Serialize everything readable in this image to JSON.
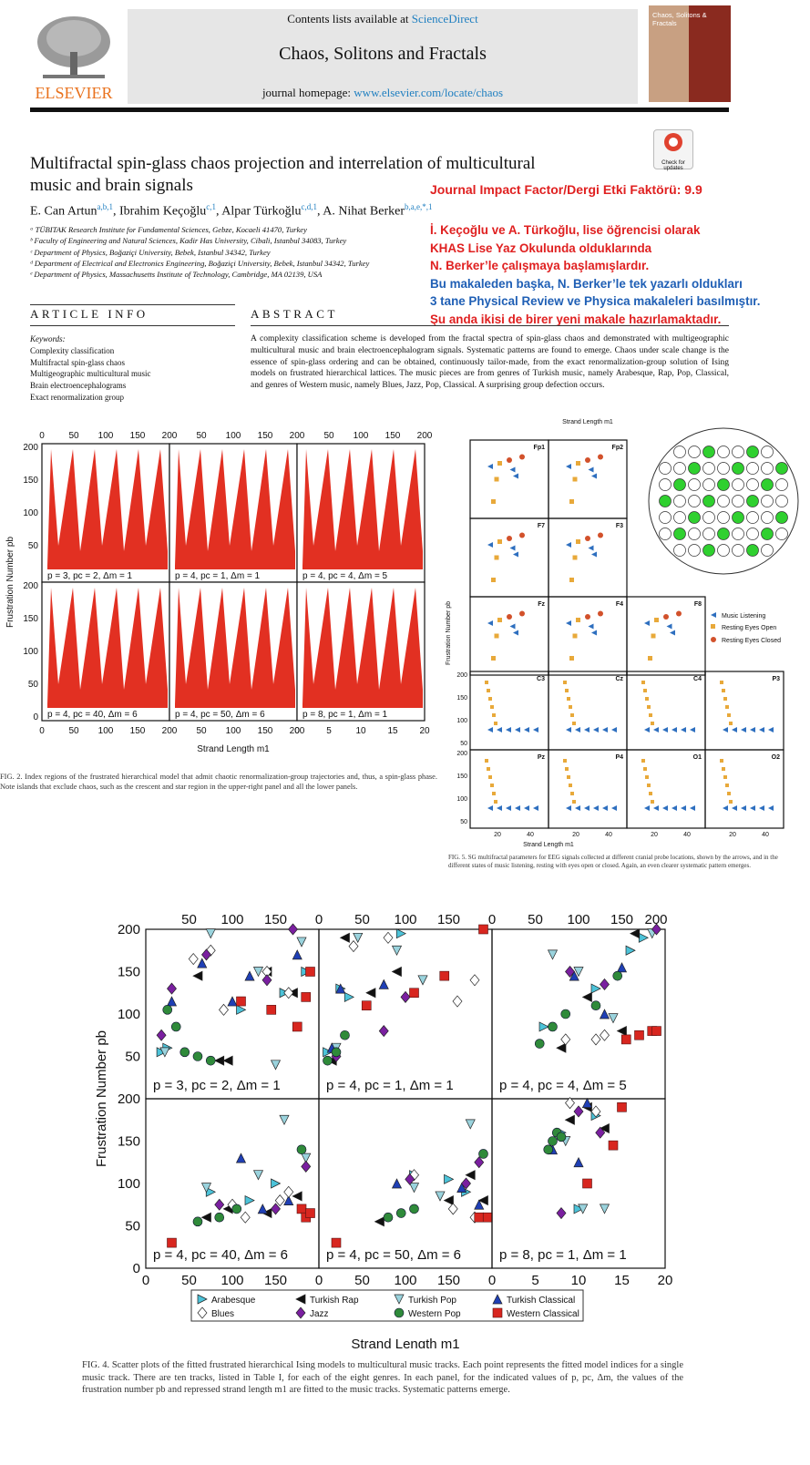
{
  "header": {
    "contents_prefix": "Contents lists available at ",
    "contents_link": "ScienceDirect",
    "journal_name": "Chaos, Solitons and Fractals",
    "homepage_prefix": "journal homepage: ",
    "homepage_link": "www.elsevier.com/locate/chaos",
    "publisher": "ELSEVIER",
    "cover_title": "Chaos, Solitons & Fractals",
    "check_updates": "Check for updates"
  },
  "article": {
    "title_line1": "Multifractal spin-glass chaos projection and interrelation of multicultural",
    "title_line2": "music and brain signals",
    "authors": [
      {
        "name": "E. Can Artun",
        "sup": "a,b,1"
      },
      {
        "name": "Ibrahim Keçoğlu",
        "sup": "c,1"
      },
      {
        "name": "Alpar Türkoğlu",
        "sup": "c,d,1"
      },
      {
        "name": "A. Nihat Berker",
        "sup": "b,a,e,*,1"
      }
    ],
    "affiliations": [
      "ᵃ TÜBITAK Research Institute for Fundamental Sciences, Gebze, Kocaeli 41470, Turkey",
      "ᵇ Faculty of Engineering and Natural Sciences, Kadir Has University, Cibali, Istanbul 34083, Turkey",
      "ᶜ Department of Physics, Boğaziçi University, Bebek, Istanbul 34342, Turkey",
      "ᵈ Department of Electrical and Electronics Engineering, Boğaziçi University, Bebek, Istanbul 34342, Turkey",
      "ᵉ Department of Physics, Massachusetts Institute of Technology, Cambridge, MA 02139, USA"
    ]
  },
  "overlay": {
    "impact": "Journal Impact Factor/Dergi Etki Faktörü: 9.9",
    "red_lines": [
      "İ. Keçoğlu ve A. Türkoğlu, lise öğrencisi olarak",
      "KHAS Lise Yaz Okulunda olduklarında",
      "N. Berker’le çalışmaya başlamışlardır."
    ],
    "blue_lines": [
      "Bu makaleden başka, N. Berker’le tek yazarlı oldukları",
      "3 tane Physical Review ve Physica makaleleri basılmıştır."
    ],
    "red_last": "Şu anda ikisi de birer yeni makale hazırlamaktadır."
  },
  "article_info": {
    "heading": "ARTICLE INFO",
    "keywords_label": "Keywords:",
    "keywords": [
      "Complexity classification",
      "Multifractal spin-glass chaos",
      "Multigeographic multicultural music",
      "Brain electroencephalograms",
      "Exact renormalization group"
    ]
  },
  "abstract": {
    "heading": "ABSTRACT",
    "text": "A complexity classification scheme is developed from the fractal spectra of spin-glass chaos and demonstrated with multigeographic multicultural music and brain electroencephalogram signals. Systematic patterns are found to emerge. Chaos under scale change is the essence of spin-glass ordering and can be obtained, continuously tailor-made, from the exact renormalization-group solution of Ising models on frustrated hierarchical lattices. The music pieces are from genres of Turkish music, namely Arabesque, Rap, Pop, Classical, and genres of Western music, namely Blues, Jazz, Pop, Classical. A surprising group defection occurs."
  },
  "fig2": {
    "ylabel": "Frustration Number pb",
    "xlabel": "Strand Length m1",
    "panels": [
      "p = 3, pc = 2, Δm = 1",
      "p = 4, pc = 1, Δm = 1",
      "p = 4, pc = 4, Δm = 5",
      "p = 4, pc = 40, Δm = 6",
      "p = 4, pc = 50, Δm = 6",
      "p = 8, pc = 1, Δm = 1"
    ],
    "caption": "FIG. 2. Index regions of the frustrated hierarchical model that admit chaotic renormalization-group trajectories and, thus, a spin-glass phase. Note islands that exclude chaos, such as the crescent and star region in the upper-right panel and all the lower panels."
  },
  "fig5": {
    "top_xlabel": "Strand Length m1",
    "ylabel": "Frustration Number pb",
    "xlabel": "Strand Length m1",
    "panel_labels": [
      "Fp1",
      "Fp2",
      "F7",
      "F3",
      "Fz",
      "F4",
      "F8",
      "C3",
      "Cz",
      "C4",
      "P3",
      "Pz",
      "P4",
      "O1",
      "O2"
    ],
    "legend": [
      "Music Listening",
      "Resting Eyes Open",
      "Resting Eyes Closed"
    ],
    "caption": "FIG. 5. SG multifractal parameters for EEG signals collected at different cranial probe locations, shown by the arrows, and in the different states of music listening, resting with eyes open or closed. Again, an even clearer systematic pattern emerges."
  },
  "fig4": {
    "ylabel": "Frustration Number pb",
    "xlabel": "Strand Length m1",
    "panels": [
      "p = 3, pc = 2, Δm = 1",
      "p = 4, pc = 1, Δm = 1",
      "p = 4, pc = 4, Δm = 5",
      "p = 4, pc = 40, Δm = 6",
      "p = 4, pc = 50, Δm = 6",
      "p = 8, pc = 1, Δm = 1"
    ],
    "legend": [
      "Arabesque",
      "Turkish Rap",
      "Turkish Pop",
      "Turkish Classical",
      "Blues",
      "Jazz",
      "Western Pop",
      "Western Classical"
    ],
    "caption": "FIG. 4. Scatter plots of the fitted frustrated hierarchical Ising models to multicultural music tracks. Each point represents the fitted model indices for a single music track. There are ten tracks, listed in Table I, for each of the eight genres. In each panel, for the indicated values of p, pc, Δm, the values of the frustration number pb and repressed strand length m1 are fitted to the music tracks. Systematic patterns emerge."
  },
  "chart_data": [
    {
      "type": "scatter",
      "title": "FIG. 4 (p = 3, pc = 2, Δm = 1)",
      "xlabel": "Strand Length m1",
      "ylabel": "Frustration Number pb",
      "xlim": [
        0,
        200
      ],
      "ylim": [
        0,
        200
      ],
      "series": [
        {
          "name": "Arabesque",
          "x": [
            18,
            25,
            110,
            160,
            185
          ],
          "y": [
            55,
            60,
            105,
            125,
            150
          ]
        },
        {
          "name": "Turkish Rap",
          "x": [
            60,
            85,
            95,
            140,
            170
          ],
          "y": [
            145,
            45,
            45,
            150,
            125
          ]
        },
        {
          "name": "Turkish Pop",
          "x": [
            22,
            75,
            130,
            150,
            180
          ],
          "y": [
            55,
            195,
            150,
            40,
            185
          ]
        },
        {
          "name": "Turkish Classical",
          "x": [
            30,
            65,
            100,
            120,
            175
          ],
          "y": [
            115,
            160,
            115,
            145,
            170
          ]
        },
        {
          "name": "Blues",
          "x": [
            55,
            75,
            90,
            140,
            165
          ],
          "y": [
            165,
            175,
            105,
            150,
            125
          ]
        },
        {
          "name": "Jazz",
          "x": [
            18,
            30,
            70,
            140,
            170
          ],
          "y": [
            75,
            130,
            170,
            140,
            200
          ]
        },
        {
          "name": "Western Pop",
          "x": [
            25,
            35,
            45,
            60,
            75
          ],
          "y": [
            105,
            85,
            55,
            50,
            45
          ]
        },
        {
          "name": "Western Classical",
          "x": [
            110,
            145,
            175,
            185,
            190
          ],
          "y": [
            115,
            105,
            85,
            120,
            150
          ]
        }
      ]
    },
    {
      "type": "scatter",
      "title": "FIG. 4 (p = 4, pc = 1, Δm = 1)",
      "xlim": [
        0,
        200
      ],
      "ylim": [
        0,
        200
      ],
      "series": [
        {
          "name": "Arabesque",
          "x": [
            10,
            25,
            35,
            95
          ],
          "y": [
            55,
            130,
            120,
            195
          ]
        },
        {
          "name": "Turkish Rap",
          "x": [
            15,
            30,
            60,
            90
          ],
          "y": [
            45,
            190,
            125,
            150
          ]
        },
        {
          "name": "Turkish Pop",
          "x": [
            20,
            45,
            90,
            120
          ],
          "y": [
            60,
            190,
            175,
            140
          ]
        },
        {
          "name": "Turkish Classical",
          "x": [
            15,
            25,
            75
          ],
          "y": [
            60,
            130,
            135
          ]
        },
        {
          "name": "Blues",
          "x": [
            40,
            80,
            160,
            180
          ],
          "y": [
            180,
            190,
            115,
            140
          ]
        },
        {
          "name": "Jazz",
          "x": [
            20,
            75,
            100
          ],
          "y": [
            50,
            80,
            120
          ]
        },
        {
          "name": "Western Pop",
          "x": [
            10,
            20,
            30
          ],
          "y": [
            45,
            55,
            75
          ]
        },
        {
          "name": "Western Classical",
          "x": [
            55,
            110,
            145,
            190
          ],
          "y": [
            110,
            125,
            145,
            200
          ]
        }
      ]
    },
    {
      "type": "scatter",
      "title": "FIG. 4 (p = 4, pc = 4, Δm = 5)",
      "xlim": [
        0,
        200
      ],
      "ylim": [
        0,
        200
      ],
      "series": [
        {
          "name": "Arabesque",
          "x": [
            60,
            120,
            160,
            175
          ],
          "y": [
            85,
            130,
            175,
            190
          ]
        },
        {
          "name": "Turkish Rap",
          "x": [
            80,
            110,
            150,
            165
          ],
          "y": [
            60,
            120,
            80,
            195
          ]
        },
        {
          "name": "Turkish Pop",
          "x": [
            70,
            100,
            140,
            185
          ],
          "y": [
            170,
            150,
            95,
            195
          ]
        },
        {
          "name": "Turkish Classical",
          "x": [
            95,
            130,
            150
          ],
          "y": [
            145,
            100,
            155
          ]
        },
        {
          "name": "Blues",
          "x": [
            85,
            120,
            130
          ],
          "y": [
            70,
            70,
            75
          ]
        },
        {
          "name": "Jazz",
          "x": [
            90,
            130,
            190
          ],
          "y": [
            150,
            135,
            200
          ]
        },
        {
          "name": "Western Pop",
          "x": [
            55,
            70,
            85,
            120,
            145
          ],
          "y": [
            65,
            85,
            100,
            110,
            145
          ]
        },
        {
          "name": "Western Classical",
          "x": [
            155,
            170,
            185,
            190
          ],
          "y": [
            70,
            75,
            80,
            80
          ]
        }
      ]
    },
    {
      "type": "scatter",
      "title": "FIG. 4 (p = 4, pc = 40, Δm = 6)",
      "xlim": [
        0,
        200
      ],
      "ylim": [
        0,
        200
      ],
      "series": [
        {
          "name": "Arabesque",
          "x": [
            75,
            120,
            150
          ],
          "y": [
            90,
            80,
            100
          ]
        },
        {
          "name": "Turkish Rap",
          "x": [
            70,
            95,
            140,
            175
          ],
          "y": [
            60,
            70,
            65,
            85
          ]
        },
        {
          "name": "Turkish Pop",
          "x": [
            70,
            130,
            160,
            185
          ],
          "y": [
            95,
            110,
            175,
            130
          ]
        },
        {
          "name": "Turkish Classical",
          "x": [
            110,
            135,
            165
          ],
          "y": [
            130,
            70,
            80
          ]
        },
        {
          "name": "Blues",
          "x": [
            100,
            115,
            155,
            165
          ],
          "y": [
            75,
            60,
            80,
            90
          ]
        },
        {
          "name": "Jazz",
          "x": [
            85,
            150,
            185
          ],
          "y": [
            75,
            70,
            120
          ]
        },
        {
          "name": "Western Pop",
          "x": [
            60,
            85,
            105,
            180
          ],
          "y": [
            55,
            60,
            70,
            140
          ]
        },
        {
          "name": "Western Classical",
          "x": [
            30,
            180,
            185,
            190
          ],
          "y": [
            30,
            70,
            60,
            65
          ]
        }
      ]
    },
    {
      "type": "scatter",
      "title": "FIG. 4 (p = 4, pc = 50, Δm = 6)",
      "xlim": [
        0,
        200
      ],
      "ylim": [
        0,
        200
      ],
      "series": [
        {
          "name": "Arabesque",
          "x": [
            110,
            150,
            170
          ],
          "y": [
            110,
            105,
            90
          ]
        },
        {
          "name": "Turkish Rap",
          "x": [
            70,
            150,
            175,
            190
          ],
          "y": [
            55,
            80,
            110,
            80
          ]
        },
        {
          "name": "Turkish Pop",
          "x": [
            110,
            140,
            175
          ],
          "y": [
            95,
            85,
            170
          ]
        },
        {
          "name": "Turkish Classical",
          "x": [
            90,
            165,
            185
          ],
          "y": [
            100,
            95,
            75
          ]
        },
        {
          "name": "Blues",
          "x": [
            110,
            155,
            180
          ],
          "y": [
            110,
            70,
            60
          ]
        },
        {
          "name": "Jazz",
          "x": [
            105,
            170,
            185
          ],
          "y": [
            105,
            100,
            125
          ]
        },
        {
          "name": "Western Pop",
          "x": [
            80,
            95,
            110,
            190
          ],
          "y": [
            60,
            65,
            70,
            135
          ]
        },
        {
          "name": "Western Classical",
          "x": [
            20,
            185,
            195
          ],
          "y": [
            30,
            60,
            60
          ]
        }
      ]
    },
    {
      "type": "scatter",
      "title": "FIG. 4 (p = 8, pc = 1, Δm = 1)",
      "xlim": [
        0,
        20
      ],
      "ylim": [
        0,
        200
      ],
      "series": [
        {
          "name": "Arabesque",
          "x": [
            8,
            10,
            12
          ],
          "y": [
            160,
            70,
            180
          ]
        },
        {
          "name": "Turkish Rap",
          "x": [
            9,
            11,
            13
          ],
          "y": [
            175,
            190,
            165
          ]
        },
        {
          "name": "Turkish Pop",
          "x": [
            8.5,
            10.5,
            13
          ],
          "y": [
            150,
            70,
            70
          ]
        },
        {
          "name": "Turkish Classical",
          "x": [
            7,
            10,
            11
          ],
          "y": [
            140,
            125,
            195
          ]
        },
        {
          "name": "Blues",
          "x": [
            9,
            12
          ],
          "y": [
            195,
            185
          ]
        },
        {
          "name": "Jazz",
          "x": [
            8,
            10,
            12.5
          ],
          "y": [
            65,
            185,
            160
          ]
        },
        {
          "name": "Western Pop",
          "x": [
            6.5,
            7,
            7.5,
            8
          ],
          "y": [
            140,
            150,
            160,
            155
          ]
        },
        {
          "name": "Western Classical",
          "x": [
            11,
            14,
            15
          ],
          "y": [
            100,
            145,
            190
          ]
        }
      ]
    }
  ]
}
